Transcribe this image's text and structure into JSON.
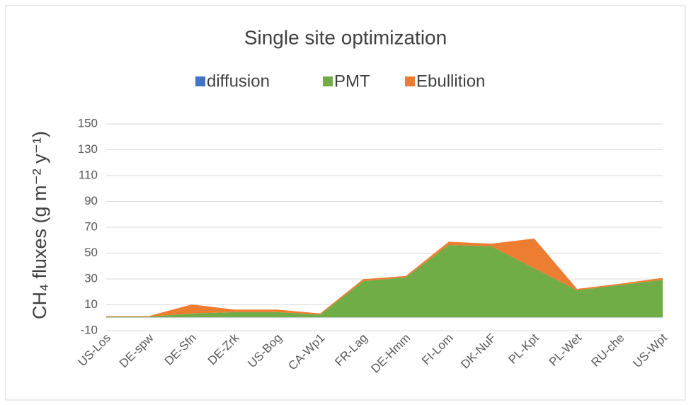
{
  "chart_data": {
    "type": "stacked_area",
    "title": "Single site optimization",
    "ylabel": "CH₄ fluxes (g m⁻² y⁻¹)",
    "categories": [
      "US-Los",
      "DE-spw",
      "DE-Sfn",
      "DE-Zrk",
      "US-Bog",
      "CA-Wp1",
      "FR-Lag",
      "DE-Hmm",
      "FI-Lom",
      "DK-NuF",
      "PL-Kpt",
      "PL-Wet",
      "RU-che",
      "US-Wpt"
    ],
    "series": [
      {
        "name": "diffusion",
        "color": "#4472c4",
        "values": [
          0.3,
          0.3,
          0.3,
          0.3,
          0.3,
          0.3,
          0.3,
          0.3,
          0.3,
          0.3,
          0.3,
          0.3,
          0.3,
          0.3
        ]
      },
      {
        "name": "PMT",
        "color": "#70ad47",
        "values": [
          0.5,
          0.5,
          3,
          4,
          4,
          2,
          28,
          31,
          56,
          55,
          38,
          21,
          25,
          29
        ]
      },
      {
        "name": "Ebullition",
        "color": "#ed7d31",
        "values": [
          0.5,
          0.5,
          7,
          2,
          2,
          1,
          1.5,
          1,
          2.5,
          2,
          23,
          1,
          1,
          1.5
        ]
      }
    ],
    "ylim": [
      -10,
      150
    ],
    "yticks": [
      -10,
      10,
      30,
      50,
      70,
      90,
      110,
      130,
      150
    ],
    "grid": true,
    "legend": "top"
  }
}
